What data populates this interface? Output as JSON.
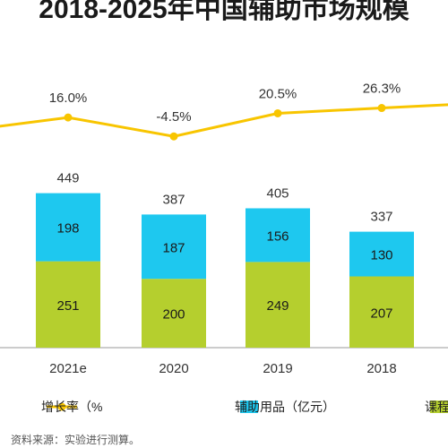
{
  "title": "2018-2025年中国辅助市场规模",
  "chart_data": {
    "type": "bar",
    "stacked": true,
    "title": "2018-2025年中国辅助市场规模",
    "categories": [
      "2018",
      "2019",
      "2020",
      "2021e"
    ],
    "series": [
      {
        "name": "课程服务（亿元）",
        "values": [
          207,
          249,
          200,
          251
        ],
        "color": "#b5cf2e"
      },
      {
        "name": "辅助用品（亿元）",
        "values": [
          130,
          156,
          187,
          198
        ],
        "color": "#1ec8ef"
      }
    ],
    "totals": [
      337,
      405,
      387,
      449
    ],
    "line": {
      "name": "增长率（%）",
      "values": [
        26.3,
        20.5,
        -4.5,
        16.0
      ],
      "labels": [
        "26.3%",
        "20.5%",
        "-4.5%",
        "16.0%"
      ],
      "color": "#f8c500"
    },
    "legend_labels": [
      "课程服务（亿元）",
      "辅助用品（亿元）",
      "增长率（%"
    ],
    "note": "资料来源：实验进行测算。"
  }
}
